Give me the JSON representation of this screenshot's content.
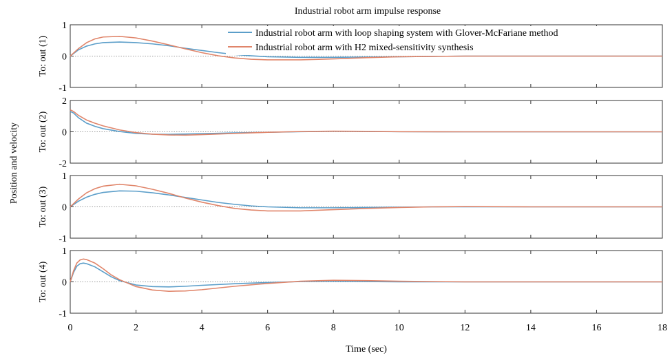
{
  "chart_data": {
    "type": "line",
    "title": "Industrial robot arm impulse response",
    "xlabel": "Time (sec)",
    "ylabel": "Position and velocity",
    "xlim": [
      0,
      18
    ],
    "xticks": [
      0,
      2,
      4,
      6,
      8,
      10,
      12,
      14,
      16,
      18
    ],
    "grid": false,
    "legend": {
      "position": "top-right",
      "entries": [
        "Industrial robot arm with loop shaping system with Glover-McFariane method",
        "Industrial robot arm with H2 mixed-sensitivity synthesis"
      ]
    },
    "colors": {
      "series1": "#5b9ec9",
      "series2": "#e0856a",
      "zero_line": "#9a9a9a",
      "axes": "#333333"
    },
    "subplots": [
      {
        "label": "To: out (1)",
        "ylim": [
          -1,
          1
        ],
        "yticks": [
          -1,
          0,
          1
        ],
        "series": [
          {
            "name": "Industrial robot arm with loop shaping system with Glover-McFariane method",
            "x": [
              0,
              0.25,
              0.5,
              0.75,
              1,
              1.5,
              2,
              2.5,
              3,
              3.5,
              4,
              4.5,
              5,
              5.5,
              6,
              7,
              8,
              9,
              10,
              11,
              12,
              14,
              16,
              18
            ],
            "y": [
              0,
              0.2,
              0.32,
              0.39,
              0.43,
              0.45,
              0.43,
              0.39,
              0.33,
              0.25,
              0.18,
              0.11,
              0.05,
              0.01,
              -0.02,
              -0.04,
              -0.04,
              -0.03,
              -0.02,
              -0.01,
              0,
              0,
              0,
              0
            ]
          },
          {
            "name": "Industrial robot arm with H2 mixed-sensitivity synthesis",
            "x": [
              0,
              0.25,
              0.5,
              0.75,
              1,
              1.5,
              2,
              2.5,
              3,
              3.5,
              4,
              4.5,
              5,
              5.5,
              6,
              7,
              8,
              9,
              10,
              11,
              12,
              14,
              16,
              18
            ],
            "y": [
              0,
              0.24,
              0.43,
              0.55,
              0.61,
              0.63,
              0.58,
              0.48,
              0.36,
              0.23,
              0.11,
              0.01,
              -0.06,
              -0.1,
              -0.12,
              -0.12,
              -0.09,
              -0.05,
              -0.02,
              -0.01,
              0,
              0,
              0,
              0
            ]
          }
        ]
      },
      {
        "label": "To: out (2)",
        "ylim": [
          -2,
          2
        ],
        "yticks": [
          -2,
          0,
          2
        ],
        "series": [
          {
            "name": "Industrial robot arm with loop shaping system with Glover-McFariane method",
            "x": [
              0,
              0.1,
              0.25,
              0.5,
              0.75,
              1,
              1.5,
              2,
              2.5,
              3,
              3.5,
              4,
              5,
              6,
              7,
              8,
              9,
              10,
              12,
              14,
              16,
              18
            ],
            "y": [
              1.3,
              1.2,
              0.9,
              0.55,
              0.35,
              0.2,
              0.02,
              -0.1,
              -0.15,
              -0.16,
              -0.14,
              -0.12,
              -0.07,
              -0.03,
              0.01,
              0.03,
              0.02,
              0.01,
              0,
              0,
              0,
              0
            ]
          },
          {
            "name": "Industrial robot arm with H2 mixed-sensitivity synthesis",
            "x": [
              0,
              0.1,
              0.25,
              0.5,
              0.75,
              1,
              1.5,
              2,
              2.5,
              3,
              3.5,
              4,
              5,
              6,
              7,
              8,
              9,
              10,
              12,
              14,
              16,
              18
            ],
            "y": [
              1.4,
              1.3,
              1.05,
              0.75,
              0.55,
              0.38,
              0.12,
              -0.05,
              -0.15,
              -0.2,
              -0.21,
              -0.18,
              -0.1,
              -0.03,
              0.02,
              0.04,
              0.03,
              0.01,
              0,
              0,
              0,
              0
            ]
          }
        ]
      },
      {
        "label": "To: out (3)",
        "ylim": [
          -1,
          1
        ],
        "yticks": [
          -1,
          0,
          1
        ],
        "series": [
          {
            "name": "Industrial robot arm with loop shaping system with Glover-McFariane method",
            "x": [
              0,
              0.25,
              0.5,
              0.75,
              1,
              1.5,
              2,
              2.5,
              3,
              3.5,
              4,
              4.5,
              5,
              5.5,
              6,
              7,
              8,
              9,
              10,
              11,
              12,
              14,
              16,
              18
            ],
            "y": [
              0,
              0.18,
              0.31,
              0.4,
              0.46,
              0.51,
              0.5,
              0.45,
              0.38,
              0.3,
              0.22,
              0.14,
              0.08,
              0.03,
              0,
              -0.03,
              -0.03,
              -0.02,
              -0.01,
              0,
              0,
              0,
              0,
              0
            ]
          },
          {
            "name": "Industrial robot arm with H2 mixed-sensitivity synthesis",
            "x": [
              0,
              0.25,
              0.5,
              0.75,
              1,
              1.5,
              2,
              2.5,
              3,
              3.5,
              4,
              4.5,
              5,
              5.5,
              6,
              7,
              8,
              9,
              10,
              11,
              12,
              14,
              16,
              18
            ],
            "y": [
              0,
              0.25,
              0.45,
              0.58,
              0.66,
              0.72,
              0.67,
              0.56,
              0.43,
              0.28,
              0.15,
              0.04,
              -0.05,
              -0.1,
              -0.13,
              -0.13,
              -0.09,
              -0.05,
              -0.02,
              0,
              0.01,
              0,
              0,
              0
            ]
          }
        ]
      },
      {
        "label": "To: out (4)",
        "ylim": [
          -1,
          1
        ],
        "yticks": [
          -1,
          0,
          1
        ],
        "series": [
          {
            "name": "Industrial robot arm with loop shaping system with Glover-McFariane method",
            "x": [
              0,
              0.1,
              0.2,
              0.3,
              0.4,
              0.5,
              0.75,
              1,
              1.25,
              1.5,
              2,
              2.5,
              3,
              3.5,
              4,
              5,
              6,
              7,
              8,
              9,
              10,
              12,
              14,
              16,
              18
            ],
            "y": [
              0,
              0.3,
              0.5,
              0.58,
              0.6,
              0.58,
              0.48,
              0.32,
              0.16,
              0.04,
              -0.1,
              -0.15,
              -0.16,
              -0.14,
              -0.11,
              -0.06,
              -0.02,
              0.01,
              0.02,
              0.01,
              0,
              0,
              0,
              0,
              0
            ]
          },
          {
            "name": "Industrial robot arm with H2 mixed-sensitivity synthesis",
            "x": [
              0,
              0.1,
              0.2,
              0.3,
              0.4,
              0.5,
              0.75,
              1,
              1.25,
              1.5,
              2,
              2.5,
              3,
              3.5,
              4,
              5,
              6,
              7,
              8,
              9,
              10,
              12,
              14,
              16,
              18
            ],
            "y": [
              0,
              0.35,
              0.6,
              0.7,
              0.73,
              0.71,
              0.6,
              0.42,
              0.22,
              0.07,
              -0.15,
              -0.26,
              -0.3,
              -0.29,
              -0.25,
              -0.14,
              -0.05,
              0.02,
              0.05,
              0.04,
              0.02,
              0,
              0,
              0,
              0
            ]
          }
        ]
      }
    ]
  }
}
